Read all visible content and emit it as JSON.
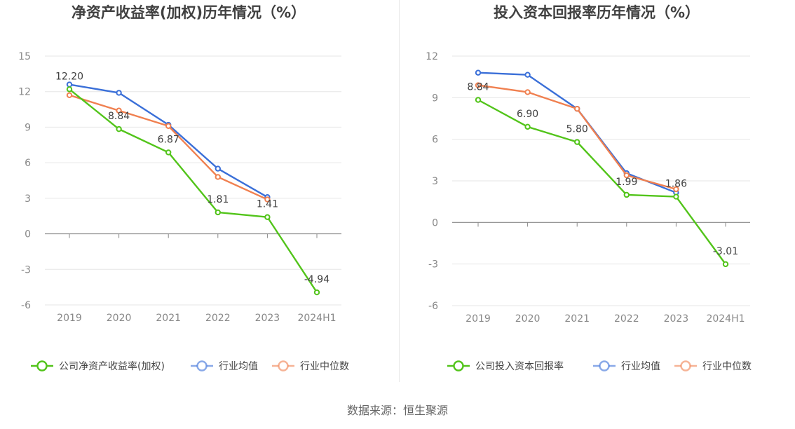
{
  "footer": "数据来源：恒生聚源",
  "chart_data": [
    {
      "type": "line",
      "title": "净资产收益率(加权)历年情况（%）",
      "categories": [
        "2019",
        "2020",
        "2021",
        "2022",
        "2023",
        "2024H1"
      ],
      "ylim": [
        -6,
        15
      ],
      "yticks": [
        "15",
        "12",
        "9",
        "6",
        "3",
        "0",
        "-3",
        "-6"
      ],
      "grid": true,
      "legend_position": "bottom",
      "series": [
        {
          "name": "公司净资产收益率(加权)",
          "color": "#52c41a",
          "values": [
            12.2,
            8.84,
            6.87,
            1.81,
            1.41,
            -4.94
          ],
          "labels": [
            "12.20",
            "8.84",
            "6.87",
            "1.81",
            "1.41",
            "-4.94"
          ]
        },
        {
          "name": "行业均值",
          "color": "#3a6fd8",
          "values": [
            12.6,
            11.9,
            9.2,
            5.5,
            3.1,
            null
          ]
        },
        {
          "name": "行业中位数",
          "color": "#f08050",
          "values": [
            11.7,
            10.4,
            9.1,
            4.8,
            2.9,
            null
          ]
        }
      ]
    },
    {
      "type": "line",
      "title": "投入资本回报率历年情况（%）",
      "categories": [
        "2019",
        "2020",
        "2021",
        "2022",
        "2023",
        "2024H1"
      ],
      "ylim": [
        -6,
        12
      ],
      "yticks": [
        "12",
        "9",
        "6",
        "3",
        "0",
        "-3",
        "-6"
      ],
      "grid": true,
      "legend_position": "bottom",
      "series": [
        {
          "name": "公司投入资本回报率",
          "color": "#52c41a",
          "values": [
            8.84,
            6.9,
            5.8,
            1.99,
            1.86,
            -3.01
          ],
          "labels": [
            "8.84",
            "6.90",
            "5.80",
            "1.99",
            "1.86",
            "-3.01"
          ]
        },
        {
          "name": "行业均值",
          "color": "#3a6fd8",
          "values": [
            10.8,
            10.65,
            8.2,
            3.55,
            2.15,
            null
          ]
        },
        {
          "name": "行业中位数",
          "color": "#f08050",
          "values": [
            9.9,
            9.4,
            8.2,
            3.4,
            2.4,
            null
          ]
        }
      ]
    }
  ]
}
